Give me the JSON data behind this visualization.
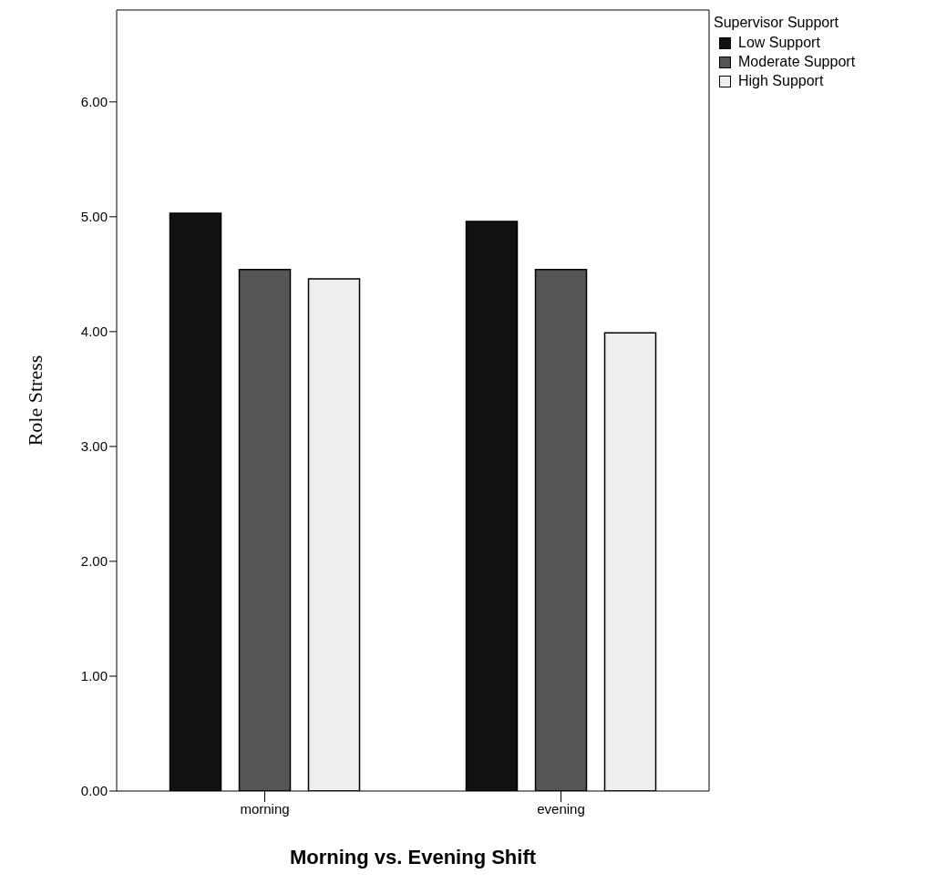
{
  "chart_data": {
    "type": "bar",
    "xlabel": "Morning vs. Evening Shift",
    "ylabel": "Role Stress",
    "legend_title": "Supervisor Support",
    "categories": [
      "morning",
      "evening"
    ],
    "series": [
      {
        "name": "Low Support",
        "color": "#111111",
        "values": [
          5.03,
          4.96
        ]
      },
      {
        "name": "Moderate Support",
        "color": "#555555",
        "values": [
          4.54,
          4.54
        ]
      },
      {
        "name": "High Support",
        "color": "#eeeeee",
        "values": [
          4.46,
          3.99
        ]
      }
    ],
    "ylim": [
      0,
      6.8
    ],
    "yticks": [
      {
        "value": 0,
        "label": "0.00"
      },
      {
        "value": 1,
        "label": "1.00"
      },
      {
        "value": 2,
        "label": "2.00"
      },
      {
        "value": 3,
        "label": "3.00"
      },
      {
        "value": 4,
        "label": "4.00"
      },
      {
        "value": 5,
        "label": "5.00"
      },
      {
        "value": 6,
        "label": "6.00"
      }
    ],
    "grid": false,
    "legend": "top right"
  }
}
